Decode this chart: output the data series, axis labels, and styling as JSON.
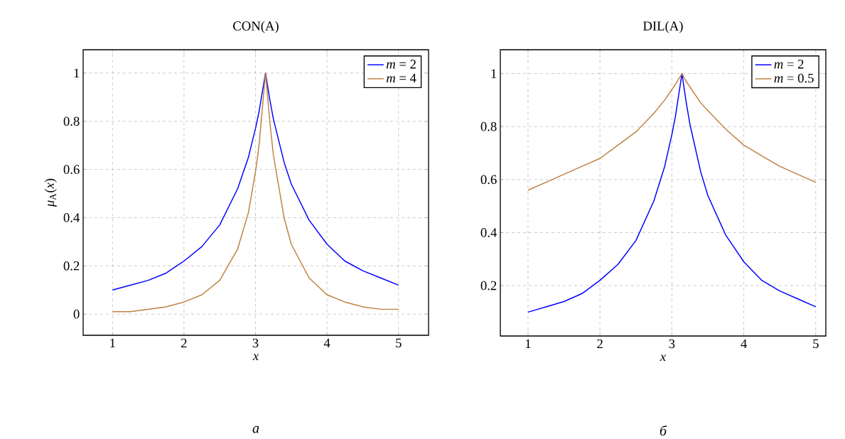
{
  "chart_data": [
    {
      "type": "line",
      "title": "CON(A)",
      "xlabel": "x",
      "ylabel": "*μ*$_{A}$(*x*)",
      "annotations": [
        "a"
      ],
      "xlim": [
        0.59,
        5.42
      ],
      "ylim": [
        -0.088,
        1.097
      ],
      "xticks": [
        1,
        2,
        3,
        4,
        5
      ],
      "yticks": [
        0,
        0.2,
        0.4,
        0.6,
        0.8,
        1
      ],
      "grid": true,
      "legend": "top right",
      "marker": "none",
      "line_style": "solid",
      "x": [
        1,
        1.25,
        1.5,
        1.75,
        2,
        2.25,
        2.5,
        2.75,
        2.9,
        3,
        3.05,
        3.14,
        3.2,
        3.25,
        3.4,
        3.5,
        3.75,
        4,
        4.25,
        4.5,
        4.75,
        5
      ],
      "series": [
        {
          "name": "*m* = 2",
          "color": "#0000ff",
          "values": [
            0.1,
            0.12,
            0.14,
            0.17,
            0.22,
            0.28,
            0.37,
            0.52,
            0.65,
            0.77,
            0.84,
            1,
            0.89,
            0.81,
            0.63,
            0.54,
            0.39,
            0.29,
            0.22,
            0.18,
            0.15,
            0.12
          ]
        },
        {
          "name": "*m* = 4",
          "color": "#bf8040",
          "values": [
            0.01,
            0.01,
            0.02,
            0.03,
            0.05,
            0.08,
            0.14,
            0.27,
            0.42,
            0.59,
            0.7,
            1,
            0.8,
            0.66,
            0.4,
            0.29,
            0.15,
            0.08,
            0.05,
            0.03,
            0.02,
            0.02
          ]
        }
      ]
    },
    {
      "type": "line",
      "title": "DIL(A)",
      "xlabel": "x",
      "annotations": [
        "б"
      ],
      "xlim": [
        0.615,
        5.14
      ],
      "ylim": [
        0.01,
        1.09
      ],
      "xticks": [
        1,
        2,
        3,
        4,
        5
      ],
      "yticks": [
        0.2,
        0.4,
        0.6,
        0.8,
        1
      ],
      "grid": true,
      "legend": "top right",
      "marker": "none",
      "line_style": "solid",
      "x": [
        1,
        1.25,
        1.5,
        1.75,
        2,
        2.25,
        2.5,
        2.75,
        2.9,
        3,
        3.05,
        3.14,
        3.2,
        3.25,
        3.4,
        3.5,
        3.75,
        4,
        4.25,
        4.5,
        4.75,
        5
      ],
      "series": [
        {
          "name": "*m* = 2",
          "color": "#0000ff",
          "values": [
            0.1,
            0.12,
            0.14,
            0.17,
            0.22,
            0.28,
            0.37,
            0.52,
            0.65,
            0.77,
            0.84,
            1,
            0.89,
            0.81,
            0.63,
            0.54,
            0.39,
            0.29,
            0.22,
            0.18,
            0.15,
            0.12
          ]
        },
        {
          "name": "*m* = 0.5",
          "color": "#bf8040",
          "values": [
            0.56,
            0.59,
            0.62,
            0.65,
            0.68,
            0.73,
            0.78,
            0.85,
            0.9,
            0.94,
            0.96,
            1,
            0.97,
            0.95,
            0.89,
            0.86,
            0.79,
            0.73,
            0.69,
            0.65,
            0.62,
            0.59
          ]
        }
      ]
    }
  ]
}
